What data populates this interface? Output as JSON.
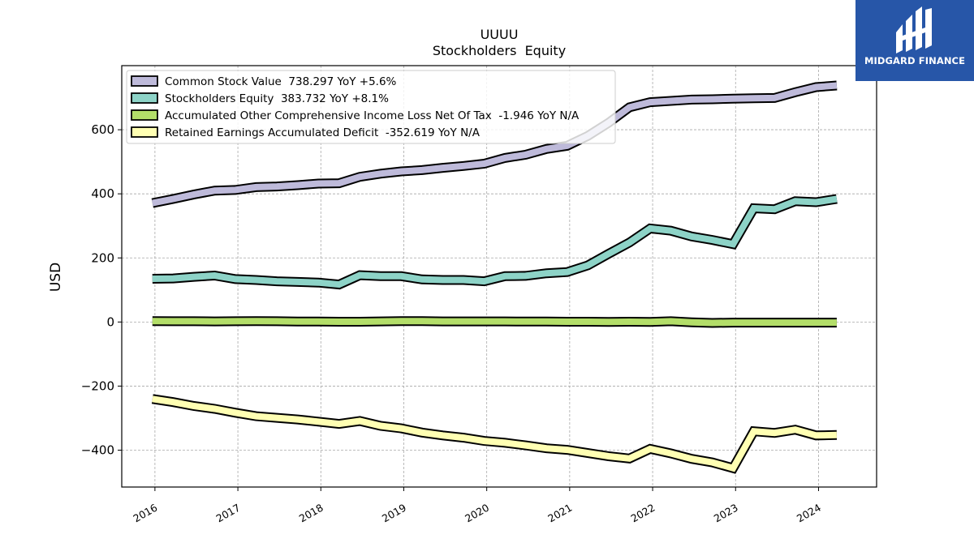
{
  "brand": {
    "name": "MIDGARD FINANCE",
    "bg_color": "#2756a8"
  },
  "chart_data": {
    "type": "line",
    "title": "UUUU",
    "subtitle": "Stockholders  Equity",
    "ylabel": "USD",
    "xlabel": "",
    "xlim": [
      2015.6,
      2024.7
    ],
    "ylim": [
      -515,
      800
    ],
    "x_ticks": [
      "2016",
      "2017",
      "2018",
      "2019",
      "2020",
      "2021",
      "2022",
      "2023",
      "2024"
    ],
    "y_ticks": [
      -400,
      -200,
      0,
      200,
      400,
      600
    ],
    "y_tick_labels": [
      "−400",
      "−200",
      "0",
      "200",
      "400",
      "600"
    ],
    "grid": true,
    "legend_position": "top-left",
    "x": [
      2015.97,
      2016.22,
      2016.47,
      2016.72,
      2016.97,
      2017.22,
      2017.47,
      2017.72,
      2017.97,
      2018.22,
      2018.47,
      2018.72,
      2018.97,
      2019.22,
      2019.47,
      2019.72,
      2019.97,
      2020.22,
      2020.47,
      2020.72,
      2020.97,
      2021.22,
      2021.47,
      2021.72,
      2021.97,
      2022.22,
      2022.47,
      2022.72,
      2022.97,
      2023.22,
      2023.47,
      2023.72,
      2023.97,
      2024.22
    ],
    "series": [
      {
        "name": "Common Stock Value",
        "legend": "Common Stock Value  738.297 YoY +5.6%",
        "color": "#bebada",
        "values": [
          371,
          384,
          398,
          410,
          412,
          421,
          423,
          427,
          432,
          433,
          453,
          463,
          470,
          474,
          481,
          487,
          494,
          512,
          522,
          540,
          550,
          581,
          622,
          670,
          686,
          690,
          694,
          695,
          697,
          698,
          699,
          717,
          733,
          738
        ]
      },
      {
        "name": "Stockholders Equity",
        "legend": "Stockholders Equity  383.732 YoY +8.1%",
        "color": "#8dd3c7",
        "values": [
          135,
          136,
          141,
          145,
          134,
          131,
          127,
          125,
          123,
          117,
          146,
          143,
          143,
          133,
          131,
          131,
          127,
          143,
          144,
          152,
          156,
          177,
          213,
          248,
          292,
          285,
          267,
          256,
          243,
          355,
          352,
          377,
          374,
          384
        ]
      },
      {
        "name": "Accumulated Other Comprehensive Income Loss Net Of Tax",
        "legend": "Accumulated Other Comprehensive Income Loss Net Of Tax  -1.946 YoY N/A",
        "color": "#b3de69",
        "values": [
          3,
          2.5,
          2.5,
          2,
          2.5,
          3,
          2.5,
          1.5,
          1.5,
          1,
          1,
          2,
          3,
          3,
          2,
          2,
          2,
          2,
          1.5,
          1.5,
          1,
          1,
          0.5,
          1,
          0.5,
          2.5,
          -1,
          -3,
          -2,
          -2,
          -2,
          -2,
          -2,
          -1.946
        ]
      },
      {
        "name": "Retained Earnings Accumulated Deficit",
        "legend": "Retained Earnings Accumulated Deficit  -352.619 YoY N/A",
        "color": "#ffffb3",
        "values": [
          -240,
          -250,
          -262,
          -271,
          -283,
          -294,
          -299,
          -304,
          -311,
          -318,
          -309,
          -324,
          -332,
          -345,
          -354,
          -361,
          -371,
          -377,
          -385,
          -394,
          -399,
          -409,
          -419,
          -426,
          -396,
          -410,
          -427,
          -438,
          -456,
          -341,
          -346,
          -336,
          -354,
          -352.619
        ]
      }
    ]
  }
}
